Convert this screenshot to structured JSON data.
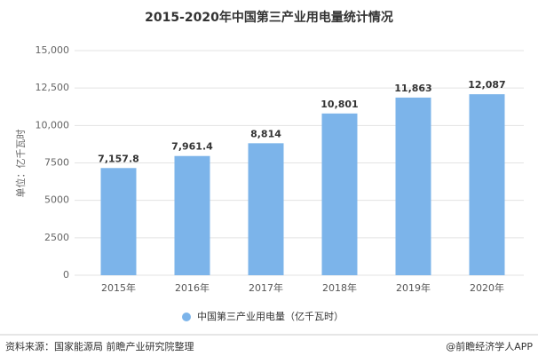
{
  "chart_data": {
    "type": "bar",
    "title": "2015-2020年中国第三产业用电量统计情况",
    "y_label": "单位：亿千瓦时",
    "categories": [
      "2015年",
      "2016年",
      "2017年",
      "2018年",
      "2019年",
      "2020年"
    ],
    "series": [
      {
        "name": "中国第三产业用电量（亿千瓦时）",
        "color": "#7cb4ea",
        "values": [
          7157.8,
          7961.4,
          8814,
          10801,
          11863,
          12087
        ],
        "value_labels": [
          "7,157.8",
          "7,961.4",
          "8,814",
          "10,801",
          "11,863",
          "12,087"
        ]
      }
    ],
    "ylim": [
      0,
      15000
    ],
    "yticks": [
      0,
      2500,
      5000,
      7500,
      {
        "value": 10000,
        "label": "10,000"
      },
      {
        "value": 12500,
        "label": "12,500"
      },
      {
        "value": 15000,
        "label": "15,000"
      }
    ],
    "grid": true,
    "legend": "bottom"
  },
  "footer": {
    "source": "资料来源：国家能源局 前瞻产业研究院整理",
    "credit": "@前瞻经济学人APP"
  }
}
